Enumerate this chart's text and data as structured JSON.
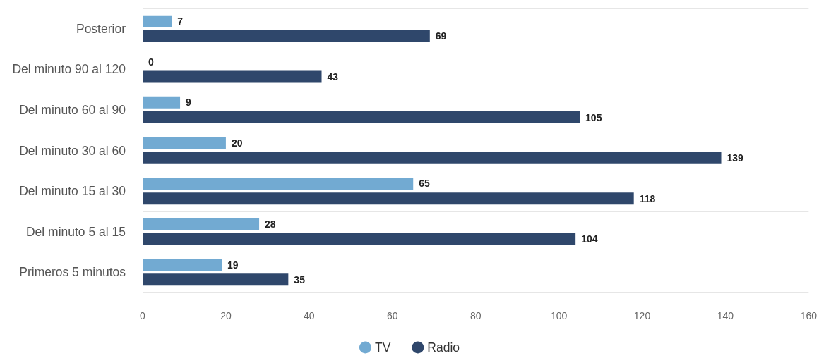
{
  "chart_data": {
    "type": "bar",
    "orientation": "horizontal",
    "categories": [
      "Posterior",
      "Del minuto 90 al 120",
      "Del minuto 60 al 90",
      "Del minuto 30 al 60",
      "Del minuto 15 al 30",
      "Del minuto 5 al 15",
      "Primeros 5 minutos"
    ],
    "series": [
      {
        "name": "TV",
        "color": "#72aad2",
        "values": [
          7,
          0,
          9,
          20,
          65,
          28,
          19
        ]
      },
      {
        "name": "Radio",
        "color": "#2f476b",
        "values": [
          69,
          43,
          105,
          139,
          118,
          104,
          35
        ]
      }
    ],
    "xlim": [
      0,
      160
    ],
    "xticks": [
      0,
      20,
      40,
      60,
      80,
      100,
      120,
      140,
      160
    ],
    "grid": "y",
    "legend": "bottom",
    "data_labels": true
  }
}
